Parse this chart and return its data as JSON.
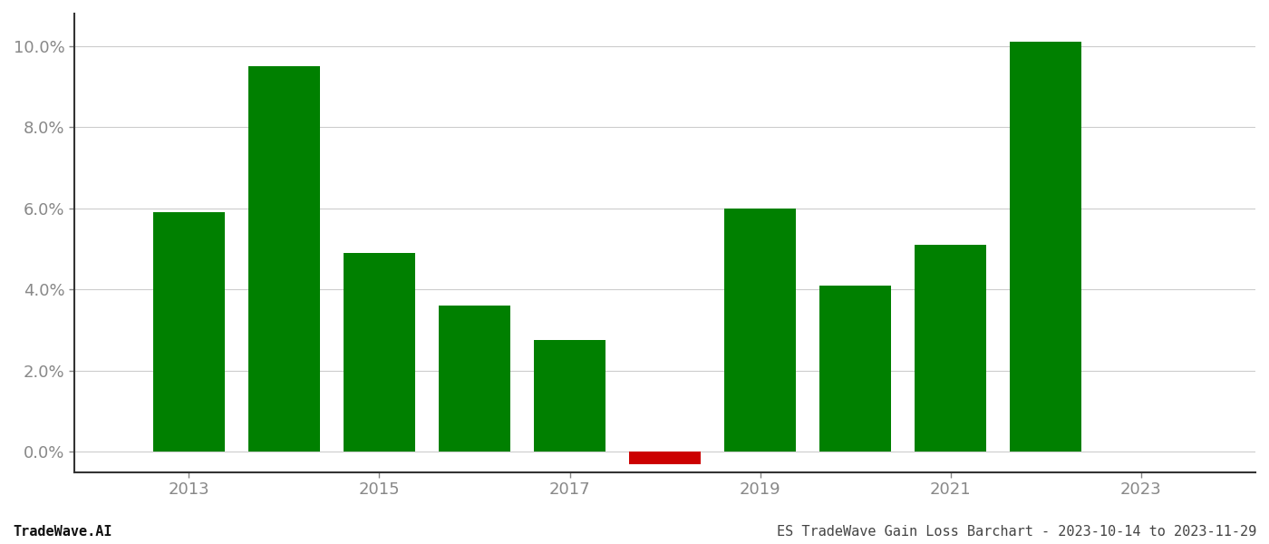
{
  "years": [
    2013,
    2014,
    2015,
    2016,
    2017,
    2018,
    2019,
    2020,
    2021,
    2022
  ],
  "values": [
    0.059,
    0.095,
    0.049,
    0.036,
    0.0275,
    -0.003,
    0.06,
    0.041,
    0.051,
    0.101
  ],
  "bar_colors": [
    "#008000",
    "#008000",
    "#008000",
    "#008000",
    "#008000",
    "#cc0000",
    "#008000",
    "#008000",
    "#008000",
    "#008000"
  ],
  "ylim": [
    -0.005,
    0.108
  ],
  "yticks": [
    0.0,
    0.02,
    0.04,
    0.06,
    0.08,
    0.1
  ],
  "xticks": [
    2013,
    2015,
    2017,
    2019,
    2021,
    2023
  ],
  "xlim": [
    2011.8,
    2024.2
  ],
  "footer_left": "TradeWave.AI",
  "footer_right": "ES TradeWave Gain Loss Barchart - 2023-10-14 to 2023-11-29",
  "background_color": "#ffffff",
  "grid_color": "#cccccc",
  "bar_width": 0.75,
  "tick_color": "#888888",
  "footer_fontsize": 11,
  "tick_fontsize": 13
}
